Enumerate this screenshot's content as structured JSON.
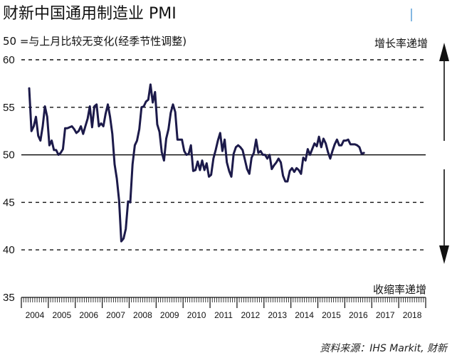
{
  "header": {
    "title": "财新中国通用制造业 PMI",
    "subtitle": "50 =与上月比较无变化(经季节性调整)"
  },
  "annotations": {
    "up": "增长率递增",
    "down": "收缩率递增"
  },
  "source": "资料来源：IHS Markit, 财新",
  "colors": {
    "series": "#1c1a4a",
    "grid": "#111111",
    "text": "#111111"
  },
  "chart_data": {
    "type": "line",
    "title": "财新中国通用制造业 PMI",
    "subtitle": "50 =与上月比较无变化(经季节性调整)",
    "xlabel": "",
    "ylabel": "",
    "ylim": [
      35,
      60
    ],
    "yticks": [
      35,
      40,
      45,
      50,
      55,
      60
    ],
    "year_labels": [
      "2004",
      "2005",
      "2006",
      "2007",
      "2008",
      "2009",
      "2010",
      "2011",
      "2012",
      "2013",
      "2014",
      "2015",
      "2016",
      "2017",
      "2018"
    ],
    "reference_line": 50,
    "grid": "dashed horizontal",
    "x_start": "2004-04",
    "frequency": "monthly",
    "series": [
      {
        "values": [
          57.0,
          52.5,
          53.0,
          54.0,
          52.0,
          51.5,
          53.0,
          55.1,
          54.0,
          51.0,
          51.5,
          50.5,
          50.5,
          50.0,
          50.2,
          50.6,
          52.8,
          52.8,
          52.9,
          53.0,
          52.7,
          52.3,
          52.5,
          53.0,
          52.2,
          53.0,
          53.8,
          55.1,
          52.9,
          55.1,
          55.3,
          53.0,
          53.3,
          53.0,
          54.3,
          55.3,
          54.0,
          52.2,
          49.0,
          47.5,
          45.2,
          40.9,
          41.2,
          42.2,
          45.1,
          45.0,
          49.0,
          51.0,
          51.5,
          52.7,
          55.0,
          55.1,
          55.6,
          55.8,
          57.4,
          55.5,
          56.6,
          53.2,
          52.4,
          50.3,
          49.4,
          51.7,
          52.7,
          54.4,
          55.3,
          54.5,
          51.6,
          51.6,
          51.6,
          50.4,
          50.0,
          50.1,
          51.0,
          48.3,
          48.4,
          49.3,
          48.4,
          49.4,
          48.4,
          49.1,
          47.7,
          47.9,
          49.6,
          50.5,
          51.5,
          52.3,
          50.4,
          51.6,
          49.2,
          48.3,
          47.7,
          50.1,
          50.8,
          51.0,
          50.8,
          50.5,
          49.5,
          48.5,
          48.0,
          49.7,
          50.2,
          51.6,
          50.2,
          50.4,
          50.0,
          50.0,
          49.6,
          50.0,
          48.5,
          48.9,
          49.2,
          49.6,
          49.2,
          47.8,
          47.2,
          47.2,
          48.3,
          48.6,
          48.2,
          48.6,
          48.4,
          48.0,
          49.7,
          49.4,
          50.6,
          50.0,
          50.6,
          51.2,
          50.9,
          51.9,
          50.8,
          51.7,
          51.2,
          50.3,
          49.6,
          50.4,
          51.1,
          51.6,
          51.0,
          51.0,
          51.5,
          51.5,
          51.6,
          51.1,
          51.1,
          51.1,
          51.0,
          50.8,
          50.1,
          50.2
        ]
      }
    ]
  }
}
